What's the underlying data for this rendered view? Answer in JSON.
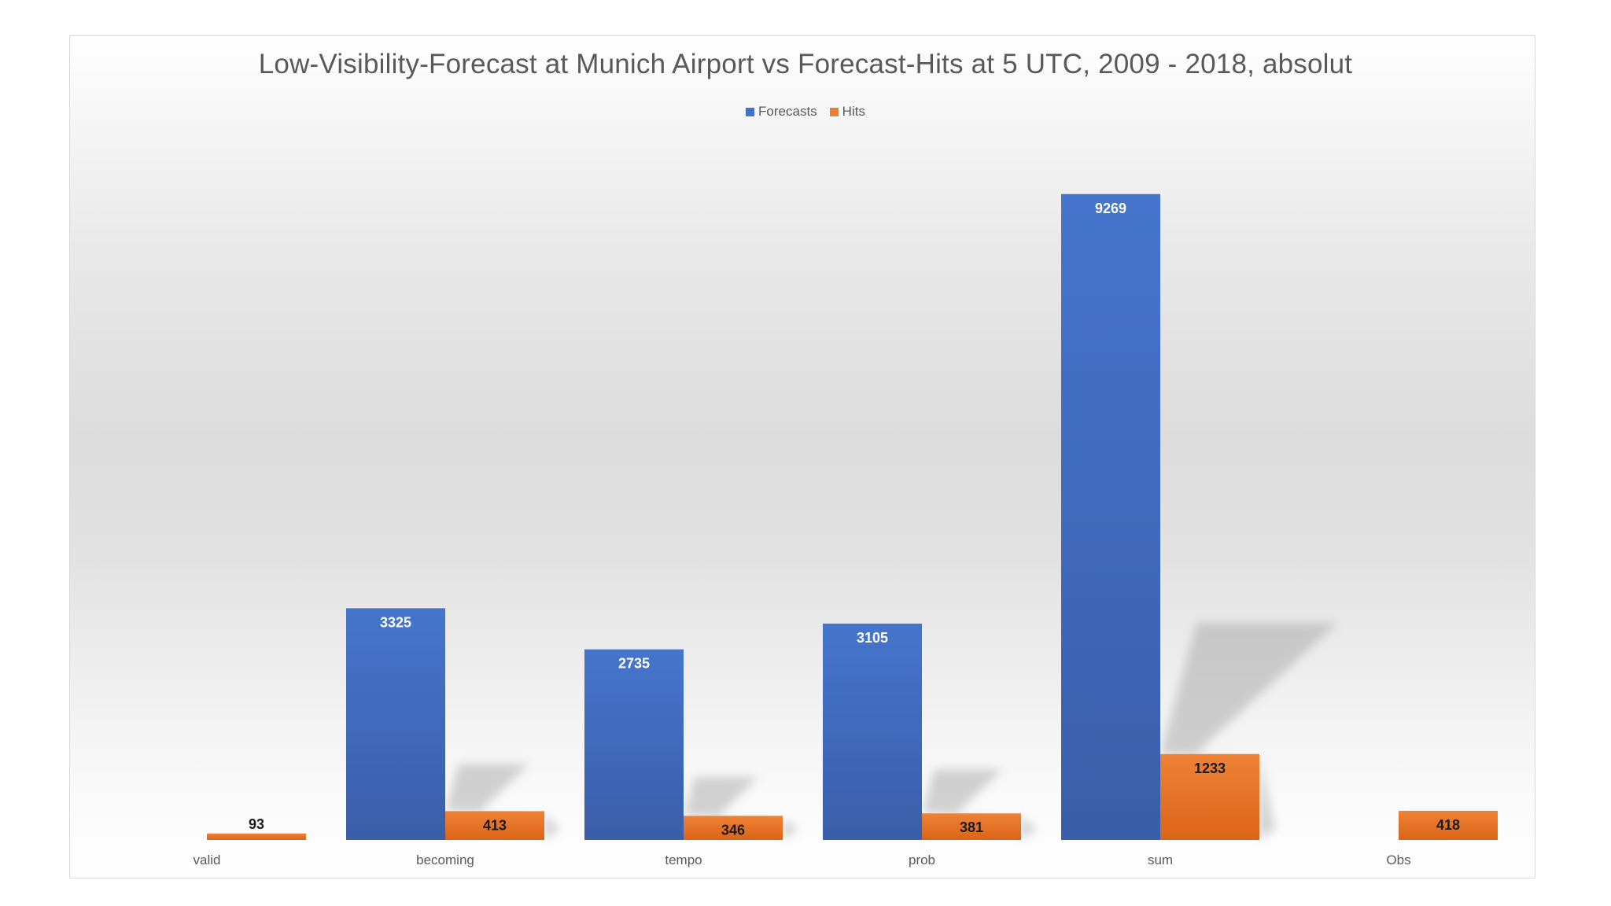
{
  "chart_data": {
    "type": "bar",
    "title": "Low-Visibility-Forecast at Munich Airport vs Forecast-Hits at 5 UTC, 2009 - 2018, absolut",
    "categories": [
      "valid",
      "becoming",
      "tempo",
      "prob",
      "sum",
      "Obs"
    ],
    "series": [
      {
        "name": "Forecasts",
        "color": "#4472c4",
        "values": [
          null,
          3325,
          2735,
          3105,
          9269,
          null
        ],
        "labels": [
          "",
          "3325",
          "2735",
          "3105",
          "9269",
          ""
        ]
      },
      {
        "name": "Hits",
        "color": "#ed7d31",
        "values": [
          93,
          413,
          346,
          381,
          1233,
          418
        ],
        "labels": [
          "93",
          "413",
          "346",
          "381",
          "1233",
          "418"
        ]
      }
    ],
    "xlabel": "",
    "ylabel": "",
    "ylim": [
      0,
      10000
    ],
    "legend": "top-center",
    "grid": false
  }
}
